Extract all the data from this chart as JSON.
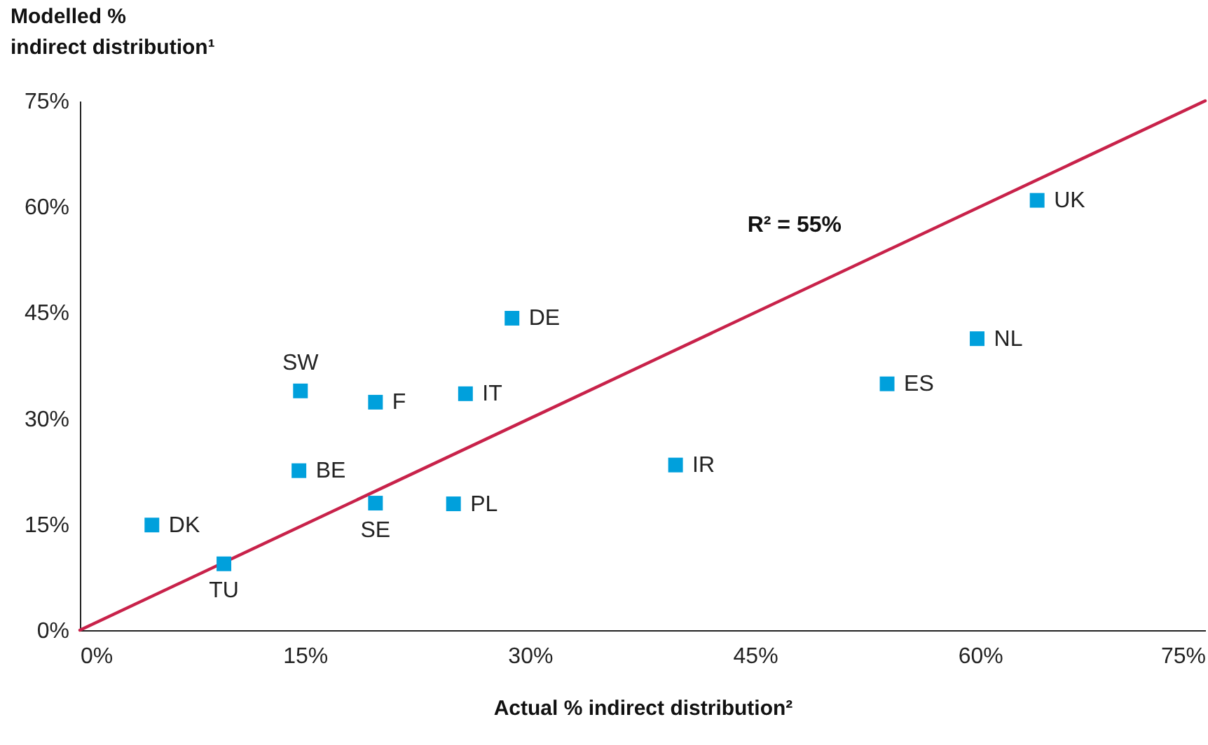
{
  "chart_data": {
    "type": "scatter",
    "xlabel": "Actual % indirect distribution²",
    "ylabel": "Modelled % indirect distribution¹",
    "xlim": [
      0,
      75
    ],
    "ylim": [
      0,
      75
    ],
    "xticks": [
      {
        "value": 0,
        "label": "0%"
      },
      {
        "value": 15,
        "label": "15%"
      },
      {
        "value": 30,
        "label": "30%"
      },
      {
        "value": 45,
        "label": "45%"
      },
      {
        "value": 60,
        "label": "60%"
      },
      {
        "value": 75,
        "label": "75%"
      }
    ],
    "yticks": [
      {
        "value": 0,
        "label": "0%"
      },
      {
        "value": 15,
        "label": "15%"
      },
      {
        "value": 30,
        "label": "30%"
      },
      {
        "value": 45,
        "label": "45%"
      },
      {
        "value": 60,
        "label": "60%"
      },
      {
        "value": 75,
        "label": "75%"
      }
    ],
    "grid": false,
    "series": [
      {
        "marker": "square",
        "color": "#00a0dc",
        "x": [
          4.8,
          9.6,
          14.6,
          19.7,
          24.9,
          14.7,
          19.7,
          25.7,
          28.8,
          63.8,
          59.8,
          53.8,
          39.7
        ],
        "values": [
          14.9,
          9.4,
          22.6,
          18.0,
          17.9,
          33.9,
          32.3,
          33.5,
          44.2,
          60.9,
          41.3,
          34.9,
          23.4
        ]
      },
      {
        "type": "line",
        "color": "#c8224a",
        "x": [
          0,
          75
        ],
        "values": [
          0,
          75
        ]
      }
    ],
    "annotations": [
      "R² = 55%",
      {
        "text": "DK",
        "x": 4.8,
        "y": 14.9
      },
      {
        "text": "TU",
        "x": 9.6,
        "y": 9.4
      },
      {
        "text": "BE",
        "x": 14.6,
        "y": 22.6
      },
      {
        "text": "SE",
        "x": 19.7,
        "y": 18.0
      },
      {
        "text": "PL",
        "x": 24.9,
        "y": 17.9
      },
      {
        "text": "SW",
        "x": 14.7,
        "y": 33.9
      },
      {
        "text": "F",
        "x": 19.7,
        "y": 32.3
      },
      {
        "text": "IT",
        "x": 25.7,
        "y": 33.5
      },
      {
        "text": "DE",
        "x": 28.8,
        "y": 44.2
      },
      {
        "text": "UK",
        "x": 63.8,
        "y": 60.9
      },
      {
        "text": "NL",
        "x": 59.8,
        "y": 41.3
      },
      {
        "text": "ES",
        "x": 53.8,
        "y": 34.9
      },
      {
        "text": "IR",
        "x": 39.7,
        "y": 23.4
      }
    ]
  }
}
